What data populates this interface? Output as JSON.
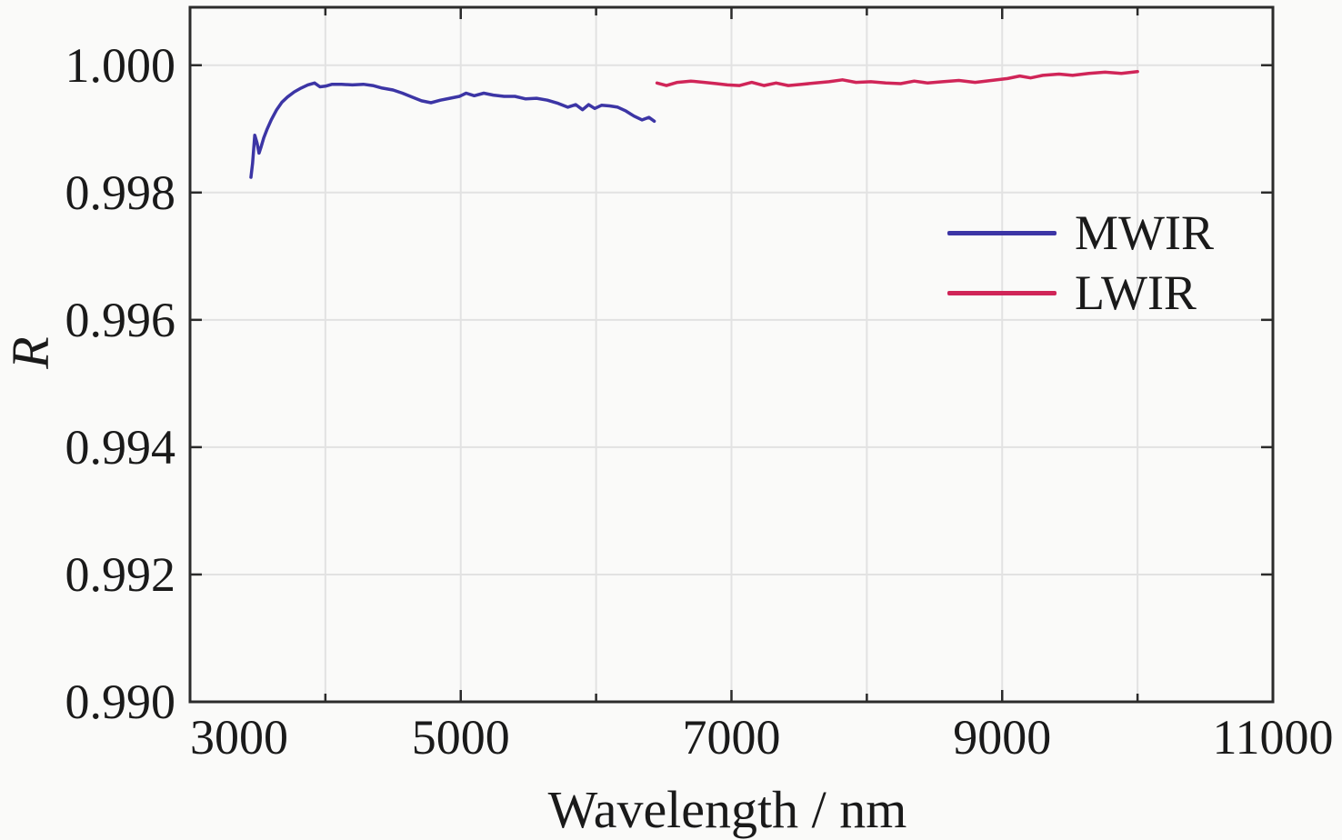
{
  "chart_data": {
    "type": "line",
    "title": "",
    "xlabel": "Wavelength / nm",
    "ylabel": "R",
    "xlim": [
      3000,
      11000
    ],
    "ylim": [
      0.99,
      1.00091
    ],
    "grid": true,
    "legend_position": "right-upper",
    "x_grid_values": [
      4000,
      5000,
      6000,
      7000,
      8000,
      9000,
      10000
    ],
    "y_grid_values": [
      0.992,
      0.994,
      0.996,
      0.998,
      1.0
    ],
    "x_minor_tick_values": [
      4000,
      6000,
      8000,
      10000
    ],
    "x_ticks": [
      {
        "value": 3000,
        "label": "3000"
      },
      {
        "value": 5000,
        "label": "5000"
      },
      {
        "value": 7000,
        "label": "7000"
      },
      {
        "value": 9000,
        "label": "9000"
      },
      {
        "value": 11000,
        "label": "11000"
      }
    ],
    "y_ticks": [
      {
        "value": 0.99,
        "label": "0.990"
      },
      {
        "value": 0.992,
        "label": "0.992"
      },
      {
        "value": 0.994,
        "label": "0.994"
      },
      {
        "value": 0.996,
        "label": "0.996"
      },
      {
        "value": 0.998,
        "label": "0.998"
      },
      {
        "value": 1.0,
        "label": "1.000"
      }
    ],
    "colors": {
      "grid": "#e2e2e2",
      "axis": "#2b2b2b",
      "background": "#fafaf9"
    },
    "series": [
      {
        "name": "MWIR",
        "color": "#3c35a5",
        "points": [
          [
            3450,
            0.99824
          ],
          [
            3462,
            0.99846
          ],
          [
            3478,
            0.9989
          ],
          [
            3495,
            0.99878
          ],
          [
            3510,
            0.99862
          ],
          [
            3525,
            0.99872
          ],
          [
            3545,
            0.99886
          ],
          [
            3570,
            0.999
          ],
          [
            3600,
            0.99914
          ],
          [
            3640,
            0.9993
          ],
          [
            3680,
            0.99942
          ],
          [
            3720,
            0.9995
          ],
          [
            3770,
            0.99958
          ],
          [
            3820,
            0.99964
          ],
          [
            3870,
            0.99969
          ],
          [
            3920,
            0.99972
          ],
          [
            3960,
            0.99966
          ],
          [
            4000,
            0.99967
          ],
          [
            4050,
            0.9997
          ],
          [
            4120,
            0.9997
          ],
          [
            4200,
            0.99969
          ],
          [
            4280,
            0.9997
          ],
          [
            4350,
            0.99968
          ],
          [
            4420,
            0.99964
          ],
          [
            4500,
            0.99961
          ],
          [
            4570,
            0.99956
          ],
          [
            4640,
            0.9995
          ],
          [
            4710,
            0.99944
          ],
          [
            4780,
            0.99941
          ],
          [
            4850,
            0.99945
          ],
          [
            4920,
            0.99948
          ],
          [
            4990,
            0.99951
          ],
          [
            5040,
            0.99956
          ],
          [
            5100,
            0.99952
          ],
          [
            5170,
            0.99956
          ],
          [
            5240,
            0.99953
          ],
          [
            5320,
            0.99951
          ],
          [
            5400,
            0.99951
          ],
          [
            5480,
            0.99947
          ],
          [
            5560,
            0.99948
          ],
          [
            5640,
            0.99945
          ],
          [
            5720,
            0.9994
          ],
          [
            5790,
            0.99934
          ],
          [
            5850,
            0.99938
          ],
          [
            5900,
            0.9993
          ],
          [
            5945,
            0.99938
          ],
          [
            5990,
            0.99932
          ],
          [
            6040,
            0.99937
          ],
          [
            6100,
            0.99936
          ],
          [
            6160,
            0.99934
          ],
          [
            6220,
            0.99928
          ],
          [
            6280,
            0.9992
          ],
          [
            6340,
            0.99914
          ],
          [
            6390,
            0.99918
          ],
          [
            6430,
            0.99912
          ]
        ]
      },
      {
        "name": "LWIR",
        "color": "#d02558",
        "points": [
          [
            6450,
            0.99972
          ],
          [
            6520,
            0.99968
          ],
          [
            6600,
            0.99973
          ],
          [
            6700,
            0.99975
          ],
          [
            6800,
            0.99973
          ],
          [
            6890,
            0.99971
          ],
          [
            6970,
            0.99969
          ],
          [
            7060,
            0.99968
          ],
          [
            7150,
            0.99973
          ],
          [
            7240,
            0.99968
          ],
          [
            7330,
            0.99972
          ],
          [
            7420,
            0.99968
          ],
          [
            7520,
            0.9997
          ],
          [
            7620,
            0.99972
          ],
          [
            7720,
            0.99974
          ],
          [
            7820,
            0.99977
          ],
          [
            7920,
            0.99973
          ],
          [
            8030,
            0.99974
          ],
          [
            8140,
            0.99972
          ],
          [
            8250,
            0.99971
          ],
          [
            8350,
            0.99975
          ],
          [
            8450,
            0.99972
          ],
          [
            8560,
            0.99974
          ],
          [
            8680,
            0.99976
          ],
          [
            8800,
            0.99973
          ],
          [
            8920,
            0.99976
          ],
          [
            9040,
            0.99979
          ],
          [
            9130,
            0.99983
          ],
          [
            9210,
            0.9998
          ],
          [
            9300,
            0.99984
          ],
          [
            9420,
            0.99986
          ],
          [
            9520,
            0.99984
          ],
          [
            9640,
            0.99987
          ],
          [
            9760,
            0.99989
          ],
          [
            9880,
            0.99987
          ],
          [
            10000,
            0.9999
          ]
        ]
      }
    ]
  }
}
